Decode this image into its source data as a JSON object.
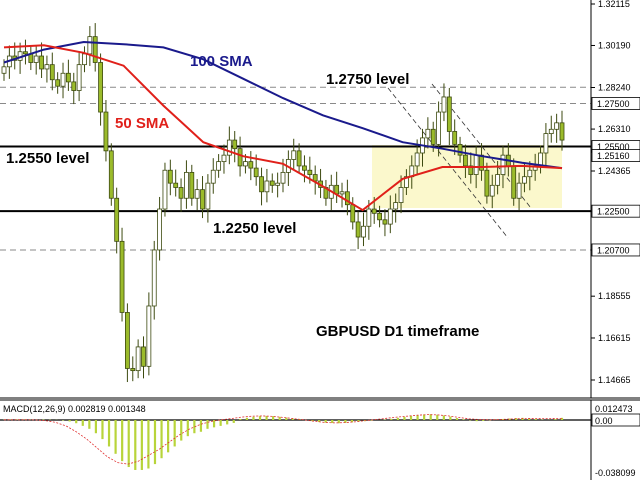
{
  "chart_data": [
    {
      "type": "candlestick",
      "symbol_timeframe": "GBPUSD D1 timeframe",
      "y_axis_ticks": [
        "1.32115",
        "1.30190",
        "1.28240",
        "1.26310",
        "1.24365",
        "1.22500",
        "1.20700",
        "1.18555",
        "1.16615",
        "1.14665"
      ],
      "y_axis_tick_values": [
        1.32115,
        1.3019,
        1.2824,
        1.2631,
        1.24365,
        1.225,
        1.207,
        1.18555,
        1.16615,
        1.14665
      ],
      "price_markers": [
        {
          "label": "1.27500",
          "value": 1.275,
          "style": "dashed"
        },
        {
          "label": "1.25500",
          "value": 1.255,
          "style": "box"
        },
        {
          "label": "1.25160",
          "value": 1.2516,
          "style": "box"
        },
        {
          "label": "1.22500",
          "value": 1.225,
          "style": "box"
        },
        {
          "label": "1.20700",
          "value": 1.207,
          "style": "box"
        }
      ],
      "horizontal_levels": [
        {
          "value": 1.2825,
          "style": "dashed"
        },
        {
          "value": 1.275,
          "style": "dashed"
        },
        {
          "value": 1.255,
          "style": "solid"
        },
        {
          "value": 1.225,
          "style": "solid"
        },
        {
          "value": 1.207,
          "style": "dashed"
        }
      ],
      "annotations": [
        {
          "text": "100 SMA",
          "color": "#1a1a8c"
        },
        {
          "text": "50 SMA",
          "color": "#e0201a"
        },
        {
          "text": "1.2750 level",
          "color": "#000000"
        },
        {
          "text": "1.2550 level",
          "color": "#000000"
        },
        {
          "text": "1.2250 level",
          "color": "#000000"
        },
        {
          "text": "GBPUSD D1 timeframe",
          "color": "#000000"
        }
      ],
      "candles_close": [
        1.292,
        1.297,
        1.295,
        1.299,
        1.298,
        1.294,
        1.297,
        1.291,
        1.293,
        1.286,
        1.283,
        1.289,
        1.285,
        1.281,
        1.293,
        1.298,
        1.306,
        1.294,
        1.271,
        1.253,
        1.231,
        1.211,
        1.178,
        1.152,
        1.151,
        1.162,
        1.153,
        1.181,
        1.207,
        1.226,
        1.244,
        1.238,
        1.236,
        1.231,
        1.243,
        1.231,
        1.235,
        1.226,
        1.238,
        1.244,
        1.248,
        1.251,
        1.258,
        1.254,
        1.246,
        1.248,
        1.245,
        1.241,
        1.234,
        1.239,
        1.237,
        1.238,
        1.243,
        1.249,
        1.253,
        1.246,
        1.244,
        1.242,
        1.239,
        1.236,
        1.231,
        1.237,
        1.233,
        1.234,
        1.228,
        1.22,
        1.213,
        1.218,
        1.226,
        1.224,
        1.221,
        1.219,
        1.226,
        1.229,
        1.236,
        1.241,
        1.246,
        1.252,
        1.259,
        1.263,
        1.256,
        1.271,
        1.278,
        1.262,
        1.256,
        1.251,
        1.246,
        1.242,
        1.251,
        1.244,
        1.232,
        1.237,
        1.242,
        1.251,
        1.246,
        1.231,
        1.238,
        1.241,
        1.244,
        1.246,
        1.252,
        1.261,
        1.263,
        1.266,
        1.258
      ],
      "sma_100": [
        1.294,
        1.3,
        1.3035,
        1.3025,
        1.301,
        1.2955,
        1.2865,
        1.2775,
        1.2695,
        1.2635,
        1.257,
        1.254,
        1.2505,
        1.2475,
        1.245
      ],
      "sma_50": [
        1.301,
        1.302,
        1.2985,
        1.2925,
        1.274,
        1.257,
        1.2505,
        1.247,
        1.2365,
        1.2255,
        1.24,
        1.2455,
        1.2455,
        1.246,
        1.245
      ],
      "macd": {
        "label": "MACD(12,26,9) 0.002819 0.001348",
        "ticks": [
          "0.012473",
          "0.00",
          "-0.038099"
        ],
        "tick_values": [
          0.012473,
          0.0,
          -0.038099
        ],
        "histogram": [
          0.0002,
          0.0003,
          0.0004,
          0.0003,
          0.0002,
          0.0001,
          0.0003,
          0.0002,
          0.0001,
          -0.0003,
          -0.001,
          -0.0022,
          -0.004,
          -0.006,
          -0.009,
          -0.013,
          -0.018,
          -0.023,
          -0.028,
          -0.032,
          -0.034,
          -0.034,
          -0.033,
          -0.03,
          -0.026,
          -0.022,
          -0.018,
          -0.014,
          -0.011,
          -0.009,
          -0.008,
          -0.006,
          -0.005,
          -0.004,
          -0.003,
          -0.002,
          0.0008,
          0.0018,
          0.0026,
          0.0032,
          0.0034,
          0.0032,
          0.0026,
          0.002,
          0.0012,
          0.0004,
          -0.0002,
          -0.0008,
          -0.0014,
          -0.0018,
          -0.002,
          -0.0022,
          -0.002,
          -0.0016,
          -0.0012,
          -0.0008,
          -0.0004,
          0.0,
          0.0004,
          0.001,
          0.0018,
          0.0026,
          0.0034,
          0.004,
          0.0046,
          0.0048,
          0.0044,
          0.0038,
          0.0028,
          0.0016,
          0.0006,
          -0.0002,
          -0.0008,
          -0.0006,
          -0.0002,
          0.0002,
          0.0008,
          0.0012,
          0.0016,
          0.0018,
          0.0014,
          0.0008,
          0.0003,
          0.0001,
          0.0008,
          0.0018
        ],
        "signal": [
          0.0002,
          0.0002,
          0.0002,
          0.0001,
          -0.0004,
          -0.0016,
          -0.004,
          -0.008,
          -0.013,
          -0.019,
          -0.025,
          -0.029,
          -0.03,
          -0.028,
          -0.024,
          -0.02,
          -0.015,
          -0.01,
          -0.006,
          -0.003,
          -0.001,
          0.0002,
          0.0012,
          0.0024,
          0.0032,
          0.0034,
          0.003,
          0.0022,
          0.0012,
          0.0002,
          -0.0008,
          -0.0016,
          -0.002,
          -0.0018,
          -0.0012,
          -0.0004,
          0.0004,
          0.0014,
          0.0024,
          0.0032,
          0.004,
          0.0045,
          0.0042,
          0.0034,
          0.0022,
          0.001,
          0.0004,
          0.0002,
          0.0004,
          0.0008,
          0.0012,
          0.0013,
          0.0012,
          0.0012,
          0.0013
        ]
      },
      "ylim": [
        1.14,
        1.326
      ]
    }
  ],
  "colors": {
    "background": "#ffffff",
    "candle_body": "#9bbb2b",
    "candle_wick": "#3d4a10",
    "sma_100": "#1a1a8c",
    "sma_50": "#e0201a",
    "highlight": "#fbf8cc",
    "level_line": "#000000",
    "dashed_level": "#8a8a8a",
    "macd_hist": "#b8d43a",
    "macd_signal": "#e03030"
  }
}
